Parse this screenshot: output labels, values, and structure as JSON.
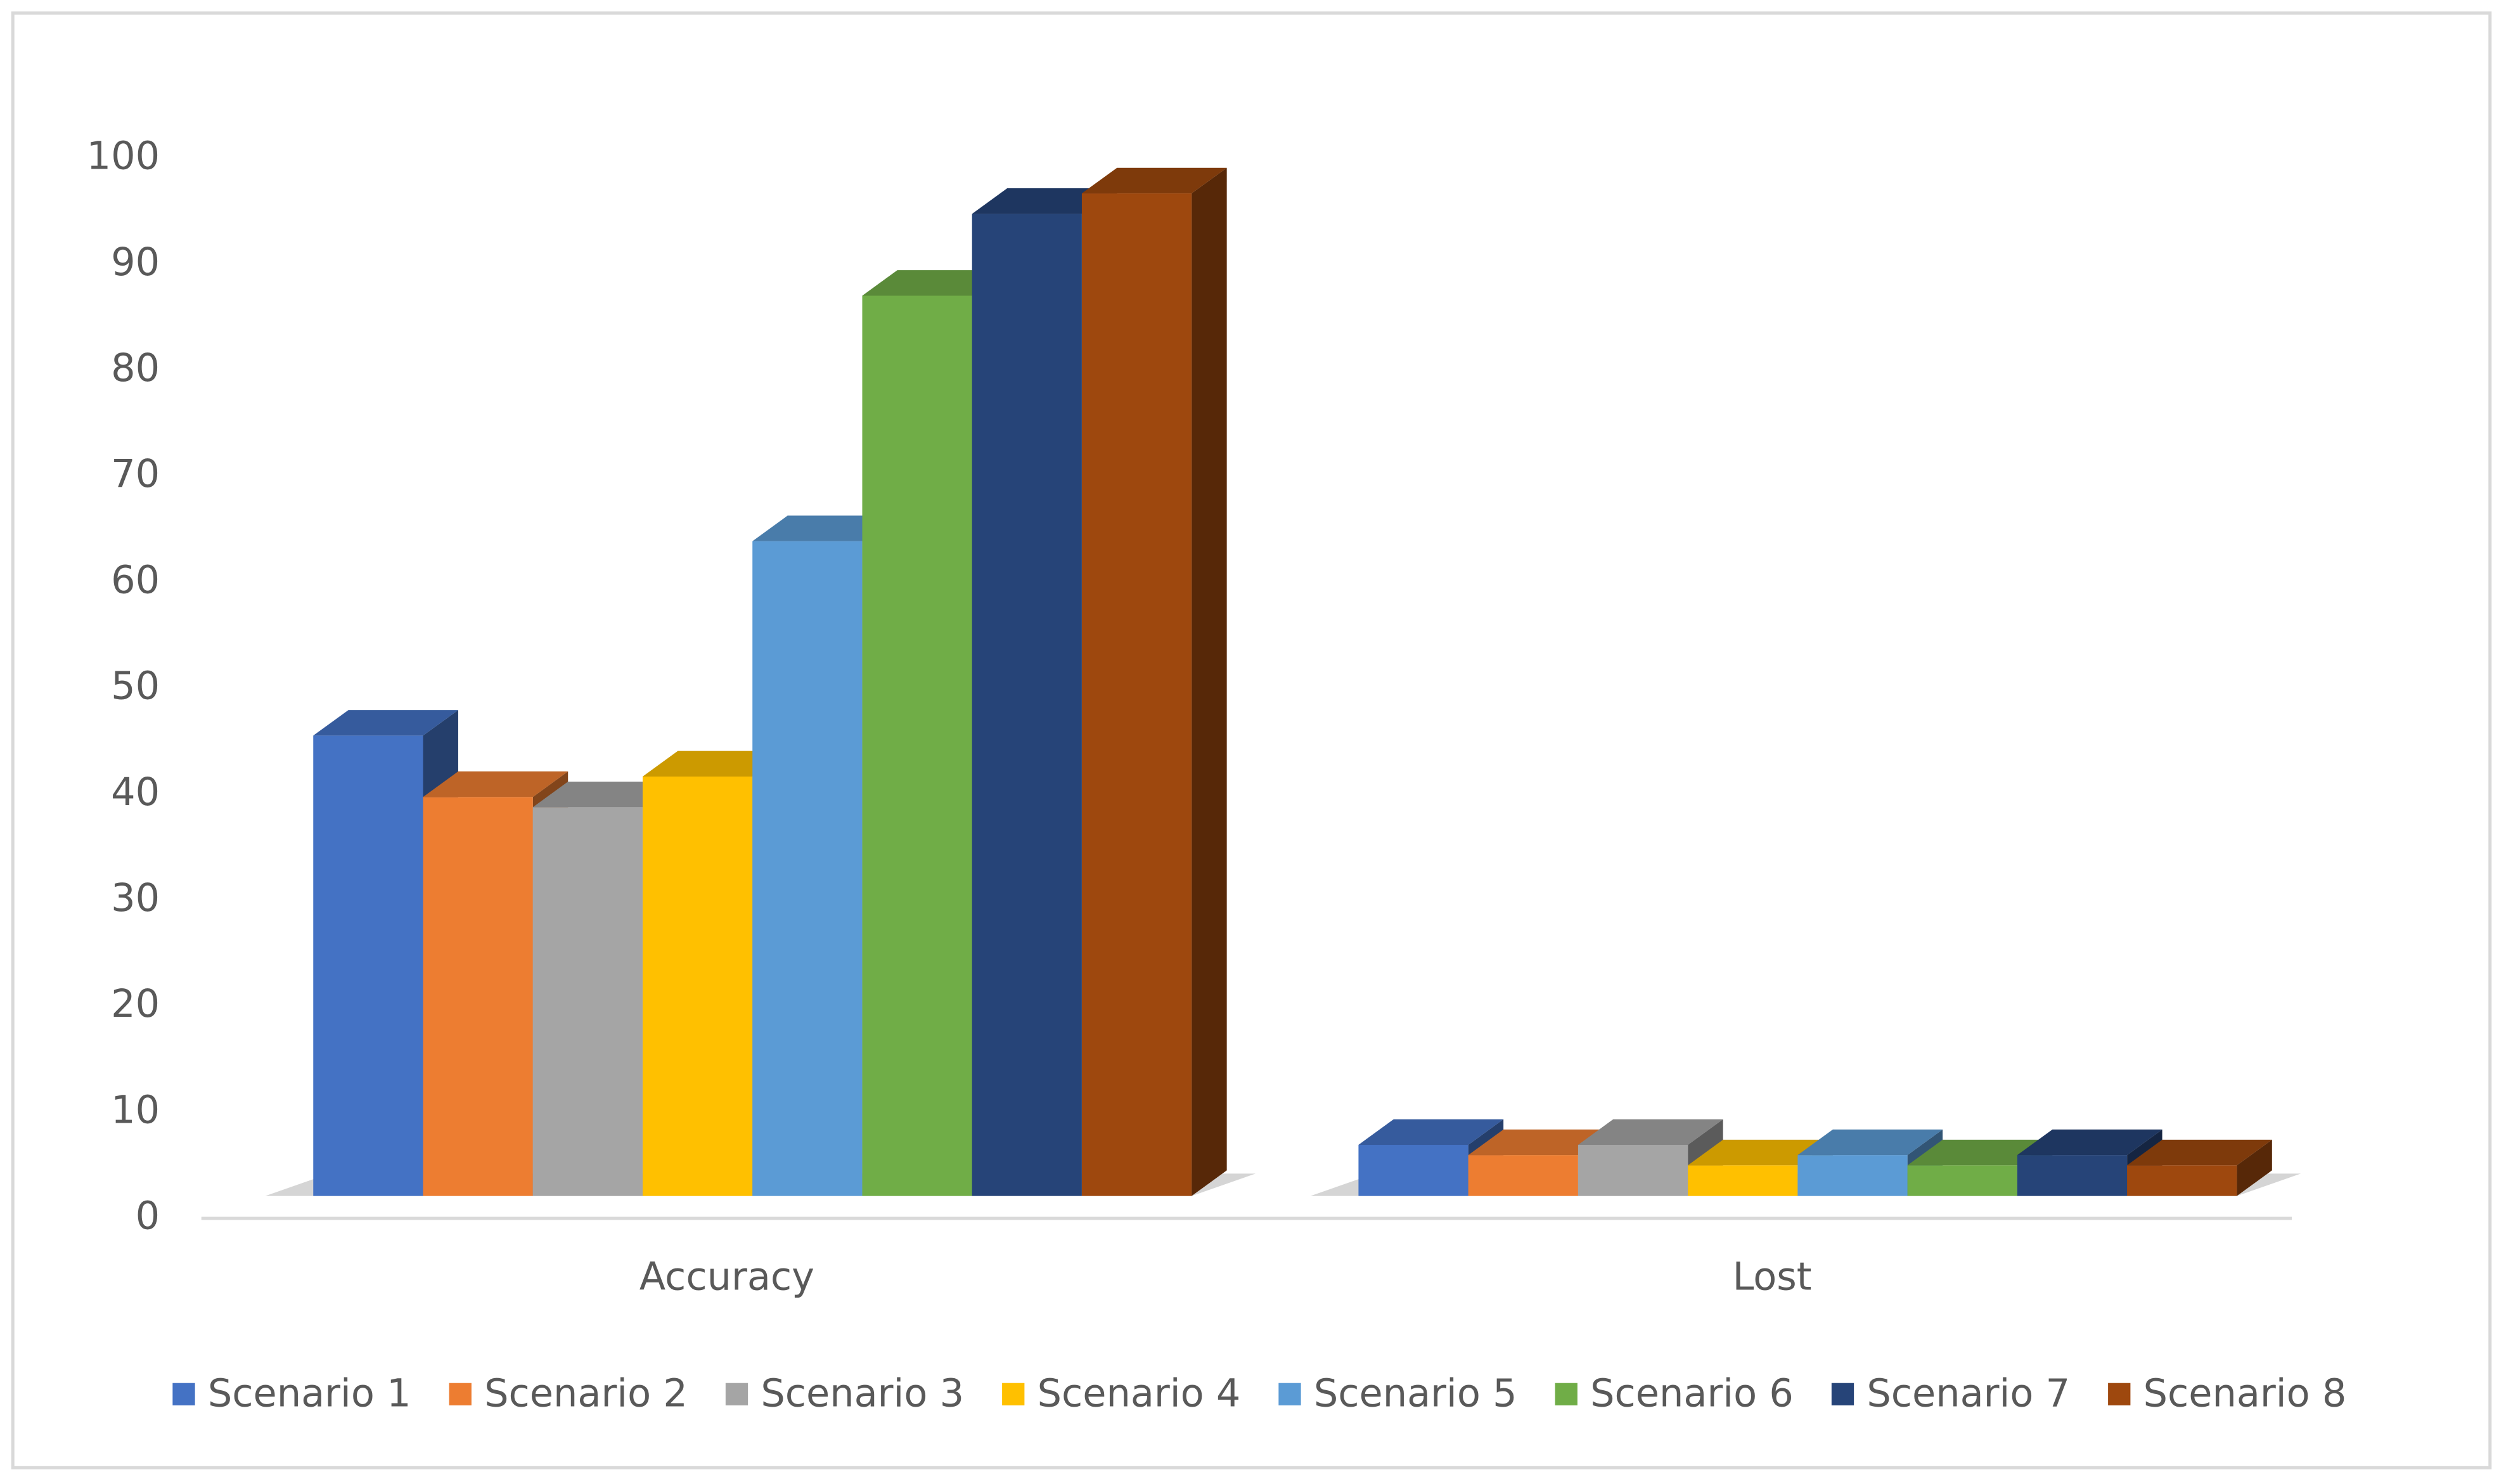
{
  "chart_data": {
    "type": "bar3d",
    "categories": [
      "Accuracy",
      "Lost"
    ],
    "series": [
      {
        "name": "Scenario 1",
        "color": "#4472c4",
        "values": [
          45,
          5
        ]
      },
      {
        "name": "Scenario 2",
        "color": "#ed7d31",
        "values": [
          39,
          4
        ]
      },
      {
        "name": "Scenario 3",
        "color": "#a5a5a5",
        "values": [
          38,
          5
        ]
      },
      {
        "name": "Scenario 4",
        "color": "#ffc000",
        "values": [
          41,
          3
        ]
      },
      {
        "name": "Scenario 5",
        "color": "#5b9bd5",
        "values": [
          64,
          4
        ]
      },
      {
        "name": "Scenario 6",
        "color": "#70ad47",
        "values": [
          88,
          3
        ]
      },
      {
        "name": "Scenario 7",
        "color": "#264478",
        "values": [
          96,
          4
        ]
      },
      {
        "name": "Scenario 8",
        "color": "#9e480e",
        "values": [
          98,
          3
        ]
      }
    ],
    "ylim": [
      0,
      100
    ],
    "yticks": [
      0,
      10,
      20,
      30,
      40,
      50,
      60,
      70,
      80,
      90,
      100
    ],
    "legend": "bottom"
  }
}
